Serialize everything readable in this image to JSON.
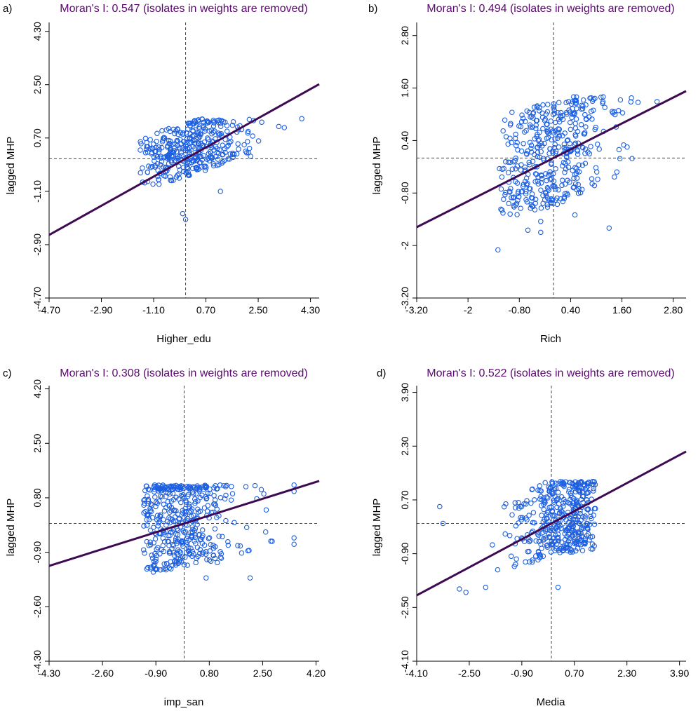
{
  "colors": {
    "title": "#5a0a6e",
    "regression": "#3e0a52",
    "points": "#1d5fe0",
    "axis": "#000000",
    "reference": "#444444"
  },
  "chart_data": [
    {
      "type": "scatter",
      "panel": "a)",
      "title": "Moran's I: 0.547 (isolates in weights are removed)",
      "xlabel": "Higher_edu",
      "ylabel": "lagged MHP",
      "xlim": [
        -4.7,
        4.6
      ],
      "ylim": [
        -4.7,
        4.6
      ],
      "xticks": [
        -4.7,
        -2.9,
        -1.1,
        0.7,
        2.5,
        4.3
      ],
      "xtick_labels": [
        "-4.70",
        "-2.90",
        "-1.10",
        "0.70",
        "2.50",
        "4.30"
      ],
      "yticks": [
        -4.7,
        -2.9,
        -1.1,
        0.7,
        2.5,
        4.3
      ],
      "ytick_labels": [
        "-4.70",
        "-2.90",
        "-1.10",
        "0.70",
        "2.50",
        "4.30"
      ],
      "reference": {
        "x": 0,
        "y": 0
      },
      "slope": 0.547,
      "intercept": 0,
      "cloud": {
        "n": 380,
        "x": [
          -1.6,
          3.3
        ],
        "cx": 0.1,
        "sx": 0.9,
        "lowFactor": 0.55,
        "highFactor": 0.25,
        "mid": 0.3,
        "band": 0.9,
        "top": 1.35,
        "bottom": -2.15,
        "seed": 11
      },
      "extra_points": [
        [
          4.0,
          1.35
        ],
        [
          3.4,
          1.05
        ],
        [
          2.1,
          0.2
        ],
        [
          0.0,
          -2.05
        ],
        [
          -0.1,
          -1.85
        ],
        [
          1.2,
          -1.1
        ]
      ]
    },
    {
      "type": "scatter",
      "panel": "b)",
      "title": "Moran's I: 0.494 (isolates in weights are removed)",
      "xlabel": "Rich",
      "ylabel": "lagged MHP",
      "xlim": [
        -3.2,
        3.1
      ],
      "ylim": [
        -3.2,
        3.1
      ],
      "xticks": [
        -3.2,
        -2,
        -0.8,
        0.4,
        1.6,
        2.8
      ],
      "xtick_labels": [
        "-3.20",
        "-2",
        "-0.80",
        "0.40",
        "1.60",
        "2.80"
      ],
      "yticks": [
        -3.2,
        -2,
        -0.8,
        0.4,
        1.6,
        2.8
      ],
      "ytick_labels": [
        "-3.20",
        "-2",
        "-0.80",
        "0.40",
        "1.60",
        "2.80"
      ],
      "reference": {
        "x": 0,
        "y": 0
      },
      "slope": 0.494,
      "intercept": 0,
      "cloud": {
        "n": 420,
        "x": [
          -1.3,
          2.7
        ],
        "cx": -0.2,
        "sx": 0.8,
        "lowFactor": 0.5,
        "highFactor": 0.05,
        "mid": 0.1,
        "band": 1.2,
        "top": 1.4,
        "bottom": -2.05,
        "seed": 23
      },
      "extra_points": [
        [
          1.3,
          -1.6
        ],
        [
          -0.3,
          -1.45
        ],
        [
          -0.3,
          -1.7
        ],
        [
          -0.6,
          -1.65
        ],
        [
          -1.3,
          -2.1
        ],
        [
          0.5,
          -1.3
        ]
      ]
    },
    {
      "type": "scatter",
      "panel": "c)",
      "title": "Moran's I: 0.308 (isolates in weights are removed)",
      "xlabel": "imp_san",
      "ylabel": "lagged MHP",
      "xlim": [
        -4.3,
        4.3
      ],
      "ylim": [
        -4.3,
        4.3
      ],
      "xticks": [
        -4.3,
        -2.6,
        -0.9,
        0.8,
        2.5,
        4.2
      ],
      "xtick_labels": [
        "-4.30",
        "-2.60",
        "-0.90",
        "0.80",
        "2.50",
        "4.20"
      ],
      "yticks": [
        -4.3,
        -2.6,
        -0.9,
        0.8,
        2.5,
        4.2
      ],
      "ytick_labels": [
        "-4.30",
        "-2.60",
        "-0.90",
        "0.80",
        "2.50",
        "4.20"
      ],
      "reference": {
        "x": 0,
        "y": 0
      },
      "slope": 0.308,
      "intercept": 0,
      "cloud": {
        "n": 440,
        "x": [
          -1.3,
          3.5
        ],
        "cx": -0.3,
        "sx": 1.0,
        "lowFactor": 0.75,
        "highFactor": 0.2,
        "mid": 0.15,
        "band": 1.5,
        "top": 1.2,
        "bottom": -2.1,
        "seed": 37
      },
      "extra_points": [
        [
          3.5,
          1.2
        ],
        [
          3.5,
          1.0
        ],
        [
          3.5,
          -0.45
        ],
        [
          3.5,
          -0.65
        ],
        [
          2.1,
          -1.7
        ],
        [
          0.7,
          -1.7
        ]
      ]
    },
    {
      "type": "scatter",
      "panel": "d)",
      "title": "Moran's I: 0.522 (isolates in weights are removed)",
      "xlabel": "Media",
      "ylabel": "lagged MHP",
      "xlim": [
        -4.1,
        4.1
      ],
      "ylim": [
        -4.1,
        4.1
      ],
      "xticks": [
        -4.1,
        -2.5,
        -0.9,
        0.7,
        2.3,
        3.9
      ],
      "xtick_labels": [
        "-4.10",
        "-2.50",
        "-0.90",
        "0.70",
        "2.30",
        "3.90"
      ],
      "yticks": [
        -4.1,
        -2.5,
        -0.9,
        0.7,
        2.3,
        3.9
      ],
      "ytick_labels": [
        "-4.10",
        "-2.50",
        "-0.90",
        "0.70",
        "2.30",
        "3.90"
      ],
      "reference": {
        "x": 0,
        "y": 0
      },
      "slope": 0.522,
      "intercept": 0,
      "cloud": {
        "n": 420,
        "x": [
          -3.0,
          1.35
        ],
        "cx": 0.5,
        "sx": 0.8,
        "lowFactor": 0.9,
        "highFactor": 0.45,
        "mid": 0.2,
        "band": 1.1,
        "top": 1.25,
        "bottom": -2.1,
        "seed": 53
      },
      "extra_points": [
        [
          -3.4,
          0.5
        ],
        [
          -3.3,
          0.0
        ],
        [
          -2.8,
          -1.95
        ],
        [
          -2.6,
          -2.05
        ],
        [
          -2.0,
          -1.9
        ],
        [
          0.2,
          -1.9
        ]
      ]
    }
  ]
}
